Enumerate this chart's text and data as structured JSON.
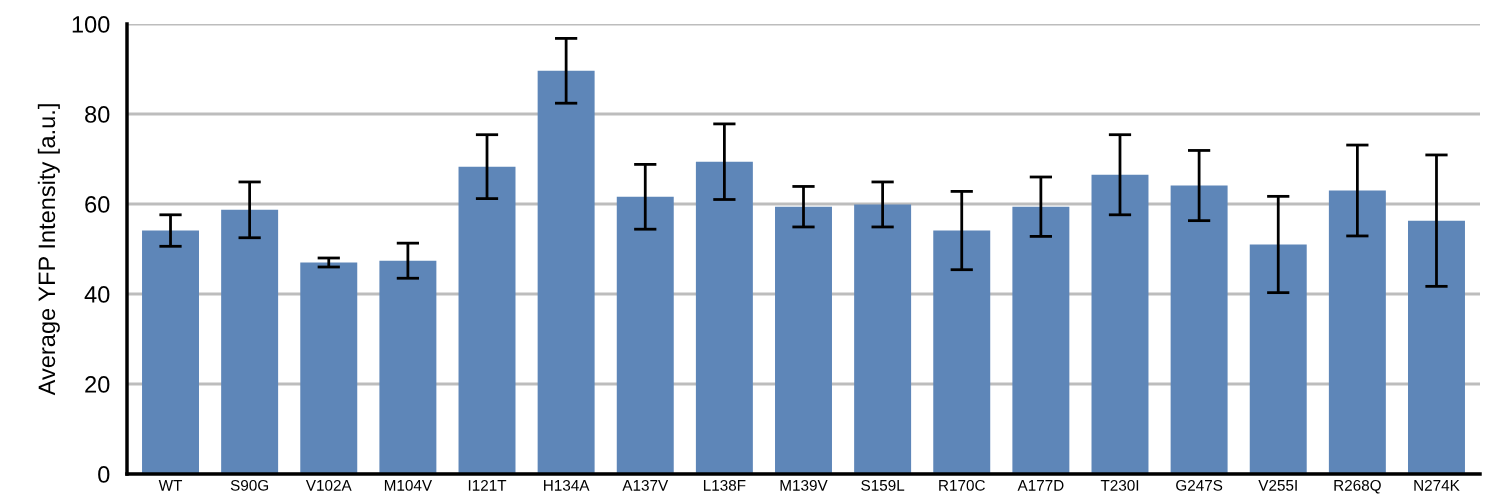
{
  "chart_data": {
    "type": "bar",
    "ylabel": "Average YFP Intensity [a.u.]",
    "categories": [
      "WT",
      "S90G",
      "V102A",
      "M104V",
      "I121T",
      "H134A",
      "A137V",
      "L138F",
      "M139V",
      "S159L",
      "R170C",
      "A177D",
      "T230I",
      "G247S",
      "V255I",
      "R268Q",
      "N274K"
    ],
    "values": [
      54.1,
      58.7,
      47.0,
      47.4,
      68.3,
      89.6,
      61.6,
      69.4,
      59.4,
      59.9,
      54.1,
      59.4,
      66.5,
      64.1,
      51.0,
      63.0,
      56.3
    ],
    "errors": [
      3.5,
      6.2,
      1.0,
      3.9,
      7.1,
      7.2,
      7.2,
      8.4,
      4.5,
      5.0,
      8.7,
      6.6,
      8.9,
      7.8,
      10.7,
      10.1,
      14.6
    ],
    "color": "#5e86b8",
    "ylim": [
      0,
      100
    ],
    "yticks": [
      0,
      20,
      40,
      60,
      80,
      100
    ],
    "grid": "y",
    "legend": false
  }
}
